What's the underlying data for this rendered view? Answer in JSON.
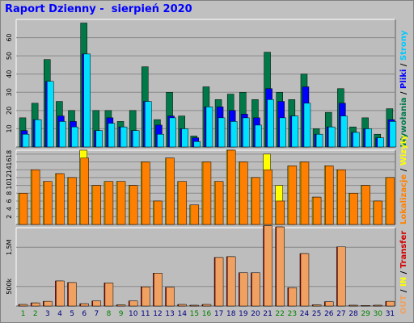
{
  "title": "Raport Dzienny -  sierpień 2020",
  "colors": {
    "background": "#c0c0c0",
    "plot_bg": "#bdbdbd",
    "hits": "#007848",
    "files": "#0000ff",
    "pages": "#00e0ff",
    "visits": "#ffff00",
    "sites": "#ff8000",
    "kbytes_in": "#d00000",
    "kbytes_out": "#f0a060",
    "day_weekday": "#000080",
    "day_weekend": "#008000"
  },
  "legend_top": {
    "sep": " / ",
    "items": [
      {
        "text": "Wywołania",
        "color": "#007848"
      },
      {
        "text": "Pliki",
        "color": "#0000ff"
      },
      {
        "text": "Strony",
        "color": "#00c8ff"
      }
    ]
  },
  "legend_mid": {
    "sep": " / ",
    "items": [
      {
        "text": "Lokalizacje",
        "color": "#ff8000"
      },
      {
        "text": "Wizyty",
        "color": "#ffff00"
      }
    ]
  },
  "legend_bot": {
    "sep": " / ",
    "items": [
      {
        "text": "OUT",
        "color": "#f0a060"
      },
      {
        "text": "IN",
        "color": "#ffff00"
      },
      {
        "text": "Transfer",
        "color": "#d00000"
      }
    ]
  },
  "chart_data": [
    {
      "type": "bar",
      "name_hint": "hits-files-pages",
      "ylim": [
        0,
        70
      ],
      "yticks": [
        "10",
        "20",
        "30",
        "40",
        "50",
        "60"
      ],
      "ytick_values": [
        10,
        20,
        30,
        40,
        50,
        60
      ],
      "categories": [
        "1",
        "2",
        "3",
        "4",
        "5",
        "6",
        "7",
        "8",
        "9",
        "10",
        "11",
        "12",
        "13",
        "14",
        "15",
        "16",
        "17",
        "18",
        "19",
        "20",
        "21",
        "22",
        "23",
        "24",
        "25",
        "26",
        "27",
        "28",
        "29",
        "30",
        "31"
      ],
      "weekend_days": [
        1,
        2,
        8,
        9,
        15,
        16,
        22,
        23,
        29,
        30
      ],
      "series": [
        {
          "name": "Wywołania",
          "color": "#007848",
          "values": [
            16,
            24,
            48,
            25,
            20,
            68,
            20,
            20,
            14,
            20,
            44,
            15,
            30,
            17,
            6,
            33,
            26,
            29,
            30,
            26,
            52,
            30,
            26,
            40,
            10,
            19,
            32,
            11,
            16,
            7,
            21
          ]
        },
        {
          "name": "Pliki",
          "color": "#0000ff",
          "values": [
            9,
            15,
            36,
            17,
            14,
            51,
            9,
            16,
            11,
            9,
            25,
            12,
            17,
            10,
            5,
            22,
            22,
            20,
            18,
            16,
            32,
            25,
            17,
            33,
            7,
            11,
            24,
            8,
            10,
            5,
            15
          ]
        },
        {
          "name": "Strony",
          "color": "#00e0ff",
          "values": [
            7,
            15,
            36,
            14,
            11,
            51,
            9,
            13,
            11,
            9,
            25,
            7,
            16,
            10,
            3,
            22,
            16,
            14,
            16,
            12,
            26,
            16,
            17,
            24,
            7,
            11,
            17,
            8,
            10,
            5,
            14
          ]
        }
      ]
    },
    {
      "type": "bar",
      "name_hint": "visits-sites",
      "ylim": [
        0,
        19
      ],
      "yticks": [
        "2",
        "4",
        "6",
        "8",
        "10",
        "12",
        "14",
        "16",
        "18"
      ],
      "ytick_values": [
        2,
        4,
        6,
        8,
        10,
        12,
        14,
        16,
        18
      ],
      "series": [
        {
          "name": "Wizyty",
          "color": "#ffff00",
          "values": [
            8,
            14,
            11,
            13,
            12,
            19,
            10,
            11,
            11,
            10,
            16,
            6,
            17,
            11,
            5,
            16,
            11,
            19,
            16,
            12,
            18,
            10,
            15,
            16,
            7,
            15,
            14,
            8,
            10,
            6,
            12
          ]
        },
        {
          "name": "Lokalizacje",
          "color": "#ff8000",
          "values": [
            8,
            14,
            11,
            13,
            12,
            17,
            10,
            11,
            11,
            10,
            16,
            6,
            17,
            11,
            5,
            16,
            11,
            19,
            16,
            12,
            14,
            6,
            15,
            16,
            7,
            15,
            14,
            8,
            10,
            6,
            12
          ]
        }
      ]
    },
    {
      "type": "bar",
      "name_hint": "transfer",
      "ylim": [
        0,
        2000
      ],
      "yticks": [
        "500k",
        "1,5M"
      ],
      "ytick_values": [
        500,
        1500
      ],
      "series": [
        {
          "name": "Transfer",
          "color": "#d00000",
          "values": [
            40,
            80,
            120,
            640,
            600,
            60,
            130,
            590,
            30,
            130,
            490,
            840,
            480,
            40,
            20,
            40,
            1240,
            1260,
            850,
            850,
            2050,
            2020,
            470,
            1340,
            30,
            110,
            1510,
            20,
            15,
            20,
            120
          ]
        },
        {
          "name": "OUT",
          "color": "#f0a060",
          "values": [
            40,
            80,
            120,
            640,
            600,
            60,
            130,
            590,
            30,
            130,
            490,
            840,
            480,
            40,
            20,
            40,
            1240,
            1260,
            850,
            850,
            2050,
            2020,
            470,
            1340,
            30,
            110,
            1510,
            20,
            15,
            20,
            120
          ]
        }
      ]
    }
  ]
}
